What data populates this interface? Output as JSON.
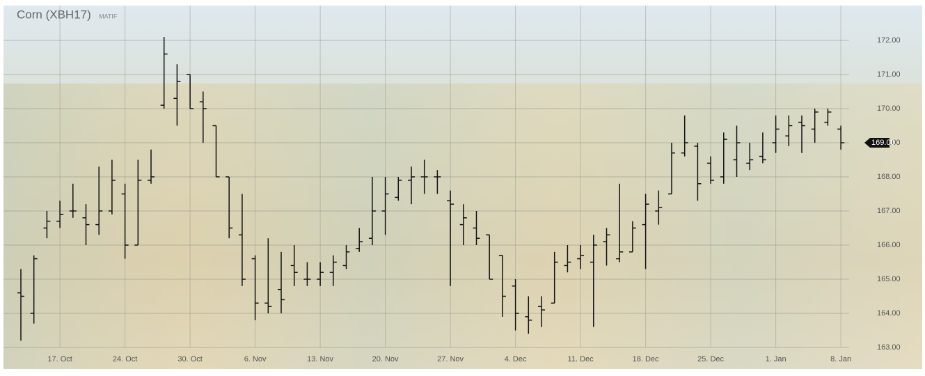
{
  "chart_data": {
    "type": "ohlc",
    "title": "Corn (XBH17)",
    "subtitle": "MATIF",
    "categories": [
      null,
      null,
      null,
      "17. Oct",
      null,
      null,
      null,
      null,
      "24. Oct",
      null,
      null,
      null,
      null,
      "30. Oct",
      null,
      null,
      null,
      null,
      "6. Nov",
      null,
      null,
      null,
      null,
      "13. Nov",
      null,
      null,
      null,
      null,
      "20. Nov",
      null,
      null,
      null,
      null,
      "27. Nov",
      null,
      null,
      null,
      null,
      "4. Dec",
      null,
      null,
      null,
      null,
      "11. Dec",
      null,
      null,
      null,
      null,
      "18. Dec",
      null,
      null,
      null,
      null,
      "25. Dec",
      null,
      null,
      null,
      null,
      "1. Jan",
      null,
      null,
      null,
      null,
      "8. Jan"
    ],
    "series": [
      {
        "color": "#111111",
        "open": [
          164.6,
          164.0,
          166.5,
          166.7,
          167.0,
          166.8,
          166.6,
          167.0,
          167.5,
          166.0,
          167.9,
          170.1,
          170.3,
          171.0,
          170.2,
          169.5,
          168.0,
          166.3,
          165.6,
          164.3,
          164.7,
          165.4,
          165.0,
          165.0,
          165.2,
          165.4,
          165.9,
          166.2,
          167.0,
          167.4,
          167.9,
          168.0,
          168.0,
          167.3,
          166.6,
          166.5,
          166.3,
          165.7,
          164.8,
          163.9,
          164.2,
          164.3,
          165.4,
          165.6,
          165.5,
          166.1,
          165.6,
          165.8,
          166.6,
          167.0,
          167.5,
          168.7,
          168.9,
          168.4,
          168.0,
          168.5,
          168.4,
          168.6,
          169.0,
          169.2,
          169.6,
          169.4,
          169.6,
          169.4
        ],
        "high": [
          165.3,
          165.7,
          167.0,
          167.3,
          167.8,
          167.2,
          168.3,
          168.5,
          167.8,
          168.5,
          168.8,
          172.1,
          171.3,
          171.0,
          170.5,
          169.5,
          168.0,
          167.5,
          165.7,
          166.2,
          165.8,
          166.0,
          165.5,
          165.5,
          165.7,
          166.0,
          166.5,
          168.0,
          168.0,
          168.0,
          168.3,
          168.5,
          168.2,
          167.6,
          167.2,
          167.0,
          166.3,
          165.7,
          165.0,
          164.5,
          164.5,
          165.8,
          166.0,
          166.0,
          166.3,
          166.5,
          167.8,
          166.7,
          167.5,
          167.6,
          169.0,
          169.8,
          169.0,
          168.6,
          169.3,
          169.5,
          169.0,
          169.3,
          169.8,
          169.8,
          169.8,
          170.0,
          170.0,
          169.5
        ],
        "low": [
          163.2,
          163.7,
          166.2,
          166.5,
          166.8,
          166.0,
          166.3,
          166.9,
          165.6,
          166.0,
          167.8,
          170.0,
          169.5,
          170.0,
          169.0,
          168.0,
          166.2,
          164.8,
          163.8,
          164.0,
          164.0,
          164.8,
          164.8,
          164.8,
          164.8,
          165.3,
          165.8,
          166.0,
          166.3,
          167.3,
          167.2,
          167.5,
          167.5,
          164.8,
          166.0,
          166.0,
          165.0,
          163.9,
          163.5,
          163.4,
          163.6,
          164.3,
          165.2,
          165.3,
          163.6,
          165.4,
          165.5,
          165.8,
          165.3,
          166.6,
          167.5,
          168.6,
          167.3,
          167.8,
          167.8,
          168.0,
          168.2,
          168.4,
          168.7,
          168.9,
          168.7,
          169.0,
          169.5,
          168.8
        ],
        "close": [
          164.5,
          165.6,
          166.7,
          166.9,
          167.0,
          166.6,
          167.0,
          167.9,
          166.0,
          167.9,
          168.0,
          171.6,
          170.8,
          170.0,
          170.0,
          168.0,
          166.5,
          165.0,
          164.3,
          164.2,
          164.4,
          165.2,
          165.0,
          165.2,
          165.5,
          165.8,
          166.1,
          167.0,
          167.5,
          167.9,
          168.0,
          168.0,
          168.0,
          167.2,
          166.8,
          166.2,
          165.0,
          164.5,
          164.0,
          163.8,
          164.1,
          165.5,
          165.5,
          165.7,
          166.0,
          166.3,
          165.8,
          166.5,
          167.2,
          167.1,
          168.7,
          169.0,
          167.8,
          167.9,
          169.1,
          169.0,
          168.5,
          168.5,
          169.4,
          169.5,
          169.5,
          169.9,
          169.9,
          169.0
        ]
      }
    ],
    "last_price": {
      "value": 169,
      "label": "169.00"
    },
    "ylim": [
      163,
      172
    ],
    "yticks": [
      {
        "value": 163,
        "label": "163.00"
      },
      {
        "value": 164,
        "label": "164.00"
      },
      {
        "value": 165,
        "label": "165.00"
      },
      {
        "value": 166,
        "label": "166.00"
      },
      {
        "value": 167,
        "label": "167.00"
      },
      {
        "value": 168,
        "label": "168.00"
      },
      {
        "value": 169,
        "label": "169.00"
      },
      {
        "value": 170,
        "label": "170.00"
      },
      {
        "value": 171,
        "label": "171.00"
      },
      {
        "value": 172,
        "label": "172.00"
      }
    ],
    "grid": true
  }
}
